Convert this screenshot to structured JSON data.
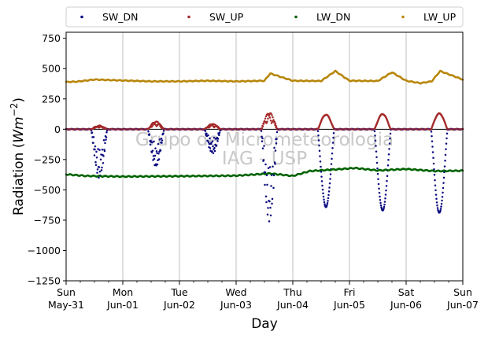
{
  "chart_data": {
    "type": "scatter",
    "xlabel": "Day",
    "ylabel_main": "Radiation (",
    "ylabel_unit": "Wm",
    "ylabel_exp": "−2",
    "ylabel_close": ")",
    "ylim": [
      -1250,
      800
    ],
    "yticks": [
      -1250,
      -1000,
      -750,
      -500,
      -250,
      0,
      250,
      500,
      750
    ],
    "ytick_labels": [
      "−1250",
      "−1000",
      "−750",
      "−500",
      "−250",
      "0",
      "250",
      "500",
      "750"
    ],
    "xlim_days": [
      0,
      7
    ],
    "xticks": [
      {
        "day": 0,
        "line1": "Sun",
        "line2": "May-31"
      },
      {
        "day": 1,
        "line1": "Mon",
        "line2": "Jun-01"
      },
      {
        "day": 2,
        "line1": "Tue",
        "line2": "Jun-02"
      },
      {
        "day": 3,
        "line1": "Wed",
        "line2": "Jun-03"
      },
      {
        "day": 4,
        "line1": "Thu",
        "line2": "Jun-04"
      },
      {
        "day": 5,
        "line1": "Fri",
        "line2": "Jun-05"
      },
      {
        "day": 6,
        "line1": "Sat",
        "line2": "Jun-06"
      },
      {
        "day": 7,
        "line1": "Sun",
        "line2": "Jun-07"
      }
    ],
    "grid_vertical": true,
    "zero_line": true,
    "legend_position": "top",
    "watermark_line1": "Grupo de Micrometeorologia",
    "watermark_line2": "IAG - USP",
    "series": [
      {
        "name": "SW_DN",
        "color": "#0a0a80",
        "note_daily_min": [
          {
            "day": 0,
            "min": -400
          },
          {
            "day": 1,
            "min": -310
          },
          {
            "day": 2,
            "min": -200
          },
          {
            "day": 3,
            "min": -760
          },
          {
            "day": 4,
            "min": -640
          },
          {
            "day": 5,
            "min": -670
          },
          {
            "day": 6,
            "min": -690
          }
        ]
      },
      {
        "name": "SW_UP",
        "color": "#a52a2a",
        "note_daily_max": [
          {
            "day": 0,
            "max": 30
          },
          {
            "day": 1,
            "max": 65
          },
          {
            "day": 2,
            "max": 45
          },
          {
            "day": 3,
            "max": 140
          },
          {
            "day": 4,
            "max": 120
          },
          {
            "day": 5,
            "max": 125
          },
          {
            "day": 6,
            "max": 130
          }
        ]
      },
      {
        "name": "LW_DN",
        "color": "#006400",
        "x": [
          0.0,
          0.35,
          1.0,
          2.0,
          3.0,
          3.6,
          4.0,
          4.3,
          4.8,
          5.1,
          5.5,
          6.0,
          6.5,
          7.0
        ],
        "y": [
          -372,
          -385,
          -390,
          -387,
          -383,
          -365,
          -385,
          -345,
          -330,
          -320,
          -340,
          -328,
          -345,
          -342
        ]
      },
      {
        "name": "LW_UP",
        "color": "#b8860b",
        "x": [
          0.0,
          0.2,
          0.5,
          1.0,
          1.5,
          2.0,
          2.5,
          3.0,
          3.5,
          3.6,
          4.0,
          4.5,
          4.75,
          5.0,
          5.5,
          5.75,
          6.0,
          6.25,
          6.45,
          6.6,
          7.0
        ],
        "y": [
          390,
          393,
          410,
          402,
          395,
          395,
          400,
          395,
          400,
          460,
          400,
          398,
          480,
          400,
          398,
          470,
          400,
          380,
          395,
          480,
          410
        ]
      }
    ]
  }
}
